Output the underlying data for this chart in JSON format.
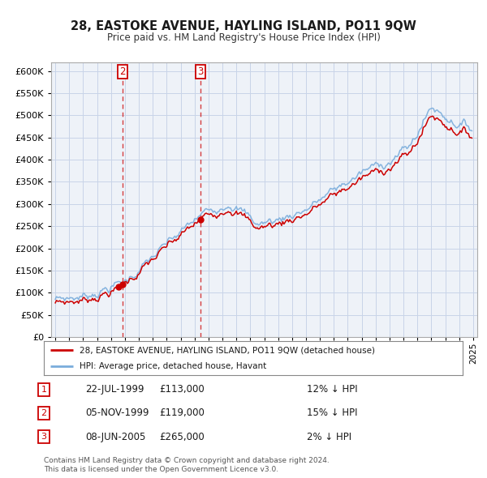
{
  "title": "28, EASTOKE AVENUE, HAYLING ISLAND, PO11 9QW",
  "subtitle": "Price paid vs. HM Land Registry's House Price Index (HPI)",
  "legend_line1": "28, EASTOKE AVENUE, HAYLING ISLAND, PO11 9QW (detached house)",
  "legend_line2": "HPI: Average price, detached house, Havant",
  "transactions": [
    {
      "num": 1,
      "date": "22-JUL-1999",
      "year": 1999.55,
      "price": 113000,
      "pct": "12%",
      "dir": "↓"
    },
    {
      "num": 2,
      "date": "05-NOV-1999",
      "year": 1999.84,
      "price": 119000,
      "pct": "15%",
      "dir": "↓"
    },
    {
      "num": 3,
      "date": "08-JUN-2005",
      "year": 2005.44,
      "price": 265000,
      "pct": "2%",
      "dir": "↓"
    }
  ],
  "vlines": [
    1,
    2
  ],
  "footnote1": "Contains HM Land Registry data © Crown copyright and database right 2024.",
  "footnote2": "This data is licensed under the Open Government Licence v3.0.",
  "price_color": "#cc0000",
  "hpi_color": "#7aaddc",
  "grid_color": "#c8d4e8",
  "bg_color": "#eef2f8",
  "ylim": [
    0,
    620000
  ],
  "yticks": [
    0,
    50000,
    100000,
    150000,
    200000,
    250000,
    300000,
    350000,
    400000,
    450000,
    500000,
    550000,
    600000
  ],
  "xlim_start": 1994.7,
  "xlim_end": 2025.3
}
